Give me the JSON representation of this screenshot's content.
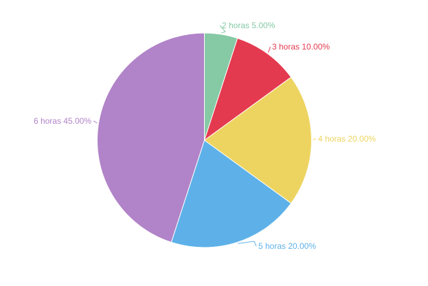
{
  "chart_data": {
    "type": "pie",
    "title": "",
    "slices": [
      {
        "label": "2 horas",
        "value": 5.0,
        "percent_text": "5.00%",
        "color": "#86c9a5"
      },
      {
        "label": "3 horas",
        "value": 10.0,
        "percent_text": "10.00%",
        "color": "#e43a4f"
      },
      {
        "label": "4 horas",
        "value": 20.0,
        "percent_text": "20.00%",
        "color": "#edd460"
      },
      {
        "label": "5 horas",
        "value": 20.0,
        "percent_text": "20.00%",
        "color": "#5eb1e8"
      },
      {
        "label": "6 horas",
        "value": 45.0,
        "percent_text": "45.00%",
        "color": "#b183c8"
      }
    ],
    "start_angle": "top",
    "direction": "clockwise",
    "legend": "none"
  }
}
